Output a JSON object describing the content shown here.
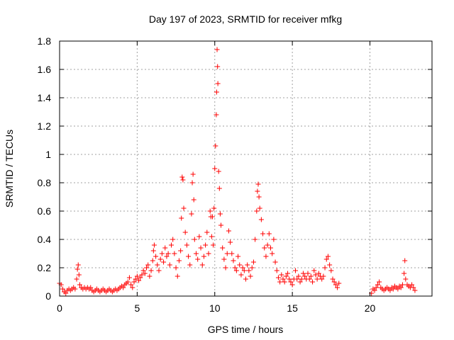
{
  "chart_data": {
    "type": "scatter",
    "title": "Day 197 of 2023, SRMTID for receiver mfkg",
    "xlabel": "GPS time / hours",
    "ylabel": "SRMTID / TECUs",
    "xlim": [
      0,
      24
    ],
    "ylim": [
      0,
      1.8
    ],
    "xticks": [
      0,
      5,
      10,
      15,
      20
    ],
    "xtick_labels": [
      "0",
      "5",
      "10",
      "15",
      "20"
    ],
    "yticks": [
      0,
      0.2,
      0.4,
      0.6,
      0.8,
      1,
      1.2,
      1.4,
      1.6,
      1.8
    ],
    "ytick_labels": [
      "0",
      "0.2",
      "0.4",
      "0.6",
      "0.8",
      "1",
      "1.2",
      "1.4",
      "1.6",
      "1.8"
    ],
    "grid": true,
    "marker": "+",
    "series": [
      {
        "name": "mfkg",
        "color": "#ff0000",
        "points": [
          [
            0.0,
            0.09
          ],
          [
            0.1,
            0.08
          ],
          [
            0.2,
            0.05
          ],
          [
            0.3,
            0.03
          ],
          [
            0.4,
            0.02
          ],
          [
            0.5,
            0.04
          ],
          [
            0.6,
            0.05
          ],
          [
            0.7,
            0.04
          ],
          [
            0.8,
            0.05
          ],
          [
            0.9,
            0.06
          ],
          [
            1.0,
            0.05
          ],
          [
            1.1,
            0.12
          ],
          [
            1.15,
            0.19
          ],
          [
            1.2,
            0.22
          ],
          [
            1.25,
            0.15
          ],
          [
            1.3,
            0.08
          ],
          [
            1.4,
            0.06
          ],
          [
            1.5,
            0.05
          ],
          [
            1.6,
            0.06
          ],
          [
            1.7,
            0.05
          ],
          [
            1.8,
            0.06
          ],
          [
            1.9,
            0.05
          ],
          [
            2.0,
            0.06
          ],
          [
            2.1,
            0.04
          ],
          [
            2.2,
            0.03
          ],
          [
            2.3,
            0.04
          ],
          [
            2.4,
            0.05
          ],
          [
            2.5,
            0.04
          ],
          [
            2.6,
            0.03
          ],
          [
            2.7,
            0.04
          ],
          [
            2.8,
            0.05
          ],
          [
            2.9,
            0.04
          ],
          [
            3.0,
            0.03
          ],
          [
            3.1,
            0.04
          ],
          [
            3.2,
            0.05
          ],
          [
            3.3,
            0.04
          ],
          [
            3.4,
            0.03
          ],
          [
            3.5,
            0.04
          ],
          [
            3.6,
            0.05
          ],
          [
            3.7,
            0.04
          ],
          [
            3.8,
            0.05
          ],
          [
            3.9,
            0.06
          ],
          [
            4.0,
            0.07
          ],
          [
            4.1,
            0.06
          ],
          [
            4.2,
            0.08
          ],
          [
            4.3,
            0.09
          ],
          [
            4.4,
            0.1
          ],
          [
            4.5,
            0.13
          ],
          [
            4.6,
            0.08
          ],
          [
            4.7,
            0.06
          ],
          [
            4.8,
            0.1
          ],
          [
            4.9,
            0.12
          ],
          [
            5.0,
            0.14
          ],
          [
            5.1,
            0.11
          ],
          [
            5.2,
            0.13
          ],
          [
            5.3,
            0.15
          ],
          [
            5.4,
            0.18
          ],
          [
            5.5,
            0.16
          ],
          [
            5.6,
            0.2
          ],
          [
            5.7,
            0.22
          ],
          [
            5.8,
            0.14
          ],
          [
            5.9,
            0.18
          ],
          [
            6.0,
            0.25
          ],
          [
            6.05,
            0.32
          ],
          [
            6.1,
            0.36
          ],
          [
            6.2,
            0.28
          ],
          [
            6.3,
            0.22
          ],
          [
            6.4,
            0.18
          ],
          [
            6.5,
            0.26
          ],
          [
            6.6,
            0.3
          ],
          [
            6.7,
            0.24
          ],
          [
            6.8,
            0.34
          ],
          [
            6.9,
            0.28
          ],
          [
            7.0,
            0.3
          ],
          [
            7.1,
            0.22
          ],
          [
            7.2,
            0.36
          ],
          [
            7.3,
            0.4
          ],
          [
            7.4,
            0.3
          ],
          [
            7.5,
            0.2
          ],
          [
            7.6,
            0.14
          ],
          [
            7.7,
            0.25
          ],
          [
            7.8,
            0.32
          ],
          [
            7.85,
            0.55
          ],
          [
            7.9,
            0.84
          ],
          [
            7.95,
            0.82
          ],
          [
            8.0,
            0.62
          ],
          [
            8.1,
            0.45
          ],
          [
            8.2,
            0.36
          ],
          [
            8.3,
            0.28
          ],
          [
            8.4,
            0.22
          ],
          [
            8.5,
            0.58
          ],
          [
            8.55,
            0.8
          ],
          [
            8.6,
            0.86
          ],
          [
            8.65,
            0.68
          ],
          [
            8.7,
            0.4
          ],
          [
            8.8,
            0.3
          ],
          [
            8.9,
            0.26
          ],
          [
            9.0,
            0.42
          ],
          [
            9.1,
            0.34
          ],
          [
            9.2,
            0.22
          ],
          [
            9.3,
            0.28
          ],
          [
            9.4,
            0.36
          ],
          [
            9.5,
            0.45
          ],
          [
            9.6,
            0.3
          ],
          [
            9.7,
            0.6
          ],
          [
            9.75,
            0.56
          ],
          [
            9.8,
            0.42
          ],
          [
            9.85,
            0.56
          ],
          [
            9.9,
            0.36
          ],
          [
            9.95,
            0.62
          ],
          [
            10.0,
            0.9
          ],
          [
            10.05,
            1.06
          ],
          [
            10.1,
            1.28
          ],
          [
            10.12,
            1.44
          ],
          [
            10.15,
            1.74
          ],
          [
            10.18,
            1.62
          ],
          [
            10.2,
            1.5
          ],
          [
            10.25,
            0.88
          ],
          [
            10.3,
            0.76
          ],
          [
            10.35,
            0.58
          ],
          [
            10.4,
            0.5
          ],
          [
            10.5,
            0.34
          ],
          [
            10.6,
            0.26
          ],
          [
            10.7,
            0.2
          ],
          [
            10.8,
            0.3
          ],
          [
            10.9,
            0.46
          ],
          [
            11.0,
            0.38
          ],
          [
            11.1,
            0.3
          ],
          [
            11.2,
            0.25
          ],
          [
            11.3,
            0.2
          ],
          [
            11.4,
            0.18
          ],
          [
            11.5,
            0.28
          ],
          [
            11.6,
            0.22
          ],
          [
            11.7,
            0.15
          ],
          [
            11.8,
            0.2
          ],
          [
            11.9,
            0.18
          ],
          [
            12.0,
            0.12
          ],
          [
            12.1,
            0.22
          ],
          [
            12.2,
            0.18
          ],
          [
            12.3,
            0.14
          ],
          [
            12.4,
            0.2
          ],
          [
            12.5,
            0.24
          ],
          [
            12.6,
            0.4
          ],
          [
            12.7,
            0.6
          ],
          [
            12.75,
            0.74
          ],
          [
            12.8,
            0.79
          ],
          [
            12.85,
            0.7
          ],
          [
            12.9,
            0.62
          ],
          [
            13.0,
            0.54
          ],
          [
            13.1,
            0.44
          ],
          [
            13.2,
            0.34
          ],
          [
            13.3,
            0.28
          ],
          [
            13.4,
            0.36
          ],
          [
            13.5,
            0.44
          ],
          [
            13.6,
            0.34
          ],
          [
            13.7,
            0.3
          ],
          [
            13.8,
            0.4
          ],
          [
            13.9,
            0.24
          ],
          [
            14.0,
            0.18
          ],
          [
            14.1,
            0.13
          ],
          [
            14.2,
            0.1
          ],
          [
            14.3,
            0.15
          ],
          [
            14.4,
            0.12
          ],
          [
            14.5,
            0.1
          ],
          [
            14.6,
            0.14
          ],
          [
            14.7,
            0.16
          ],
          [
            14.8,
            0.12
          ],
          [
            14.9,
            0.1
          ],
          [
            15.0,
            0.08
          ],
          [
            15.1,
            0.12
          ],
          [
            15.2,
            0.18
          ],
          [
            15.3,
            0.12
          ],
          [
            15.4,
            0.14
          ],
          [
            15.5,
            0.1
          ],
          [
            15.6,
            0.12
          ],
          [
            15.7,
            0.16
          ],
          [
            15.8,
            0.14
          ],
          [
            15.9,
            0.12
          ],
          [
            16.0,
            0.16
          ],
          [
            16.1,
            0.12
          ],
          [
            16.2,
            0.14
          ],
          [
            16.3,
            0.1
          ],
          [
            16.4,
            0.18
          ],
          [
            16.5,
            0.15
          ],
          [
            16.6,
            0.12
          ],
          [
            16.7,
            0.16
          ],
          [
            16.8,
            0.14
          ],
          [
            16.9,
            0.12
          ],
          [
            17.0,
            0.14
          ],
          [
            17.1,
            0.2
          ],
          [
            17.2,
            0.26
          ],
          [
            17.3,
            0.28
          ],
          [
            17.4,
            0.22
          ],
          [
            17.5,
            0.18
          ],
          [
            17.6,
            0.12
          ],
          [
            17.7,
            0.1
          ],
          [
            17.8,
            0.08
          ],
          [
            17.9,
            0.06
          ],
          [
            18.0,
            0.09
          ],
          [
            20.1,
            0.02
          ],
          [
            20.2,
            0.05
          ],
          [
            20.3,
            0.04
          ],
          [
            20.4,
            0.06
          ],
          [
            20.5,
            0.08
          ],
          [
            20.6,
            0.1
          ],
          [
            20.7,
            0.06
          ],
          [
            20.8,
            0.05
          ],
          [
            20.9,
            0.04
          ],
          [
            21.0,
            0.05
          ],
          [
            21.1,
            0.06
          ],
          [
            21.2,
            0.05
          ],
          [
            21.3,
            0.04
          ],
          [
            21.4,
            0.06
          ],
          [
            21.5,
            0.05
          ],
          [
            21.6,
            0.07
          ],
          [
            21.7,
            0.06
          ],
          [
            21.8,
            0.05
          ],
          [
            21.9,
            0.07
          ],
          [
            22.0,
            0.06
          ],
          [
            22.1,
            0.08
          ],
          [
            22.2,
            0.16
          ],
          [
            22.25,
            0.25
          ],
          [
            22.3,
            0.12
          ],
          [
            22.4,
            0.08
          ],
          [
            22.5,
            0.07
          ],
          [
            22.6,
            0.06
          ],
          [
            22.7,
            0.08
          ],
          [
            22.8,
            0.06
          ],
          [
            22.9,
            0.04
          ]
        ]
      }
    ]
  }
}
